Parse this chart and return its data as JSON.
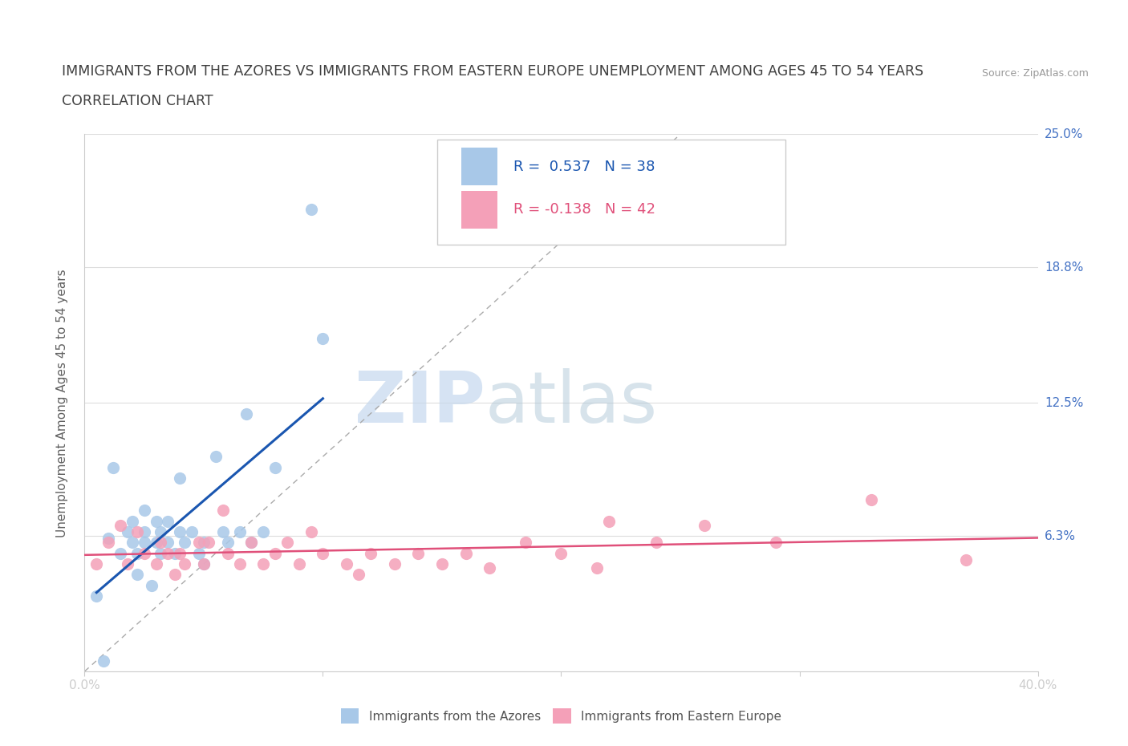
{
  "title_line1": "IMMIGRANTS FROM THE AZORES VS IMMIGRANTS FROM EASTERN EUROPE UNEMPLOYMENT AMONG AGES 45 TO 54 YEARS",
  "title_line2": "CORRELATION CHART",
  "source": "Source: ZipAtlas.com",
  "ylabel": "Unemployment Among Ages 45 to 54 years",
  "xlim": [
    0.0,
    0.4
  ],
  "ylim": [
    0.0,
    0.25
  ],
  "xticks": [
    0.0,
    0.1,
    0.2,
    0.3,
    0.4
  ],
  "xticklabels": [
    "0.0%",
    "",
    "",
    "",
    "40.0%"
  ],
  "ytick_positions": [
    0.0,
    0.063,
    0.125,
    0.188,
    0.25
  ],
  "yticklabels": [
    "",
    "6.3%",
    "12.5%",
    "18.8%",
    "25.0%"
  ],
  "watermark_zip": "ZIP",
  "watermark_atlas": "atlas",
  "azores_color": "#a8c8e8",
  "eastern_color": "#f4a0b8",
  "azores_line_color": "#1a56b0",
  "eastern_line_color": "#e0507a",
  "azores_R": 0.537,
  "azores_N": 38,
  "eastern_R": -0.138,
  "eastern_N": 42,
  "legend_label_azores": "Immigrants from the Azores",
  "legend_label_eastern": "Immigrants from Eastern Europe",
  "azores_x": [
    0.005,
    0.008,
    0.01,
    0.012,
    0.015,
    0.018,
    0.02,
    0.02,
    0.022,
    0.022,
    0.025,
    0.025,
    0.025,
    0.028,
    0.03,
    0.03,
    0.032,
    0.032,
    0.035,
    0.035,
    0.038,
    0.04,
    0.04,
    0.042,
    0.045,
    0.048,
    0.05,
    0.05,
    0.055,
    0.058,
    0.06,
    0.065,
    0.068,
    0.07,
    0.075,
    0.08,
    0.095,
    0.1
  ],
  "azores_y": [
    0.035,
    0.005,
    0.062,
    0.095,
    0.055,
    0.065,
    0.06,
    0.07,
    0.045,
    0.055,
    0.06,
    0.065,
    0.075,
    0.04,
    0.06,
    0.07,
    0.055,
    0.065,
    0.06,
    0.07,
    0.055,
    0.065,
    0.09,
    0.06,
    0.065,
    0.055,
    0.05,
    0.06,
    0.1,
    0.065,
    0.06,
    0.065,
    0.12,
    0.06,
    0.065,
    0.095,
    0.215,
    0.155
  ],
  "eastern_x": [
    0.005,
    0.01,
    0.015,
    0.018,
    0.022,
    0.025,
    0.03,
    0.032,
    0.035,
    0.038,
    0.04,
    0.042,
    0.048,
    0.05,
    0.052,
    0.058,
    0.06,
    0.065,
    0.07,
    0.075,
    0.08,
    0.085,
    0.09,
    0.095,
    0.1,
    0.11,
    0.115,
    0.12,
    0.13,
    0.14,
    0.15,
    0.16,
    0.17,
    0.185,
    0.2,
    0.215,
    0.22,
    0.24,
    0.26,
    0.29,
    0.33,
    0.37
  ],
  "eastern_y": [
    0.05,
    0.06,
    0.068,
    0.05,
    0.065,
    0.055,
    0.05,
    0.06,
    0.055,
    0.045,
    0.055,
    0.05,
    0.06,
    0.05,
    0.06,
    0.075,
    0.055,
    0.05,
    0.06,
    0.05,
    0.055,
    0.06,
    0.05,
    0.065,
    0.055,
    0.05,
    0.045,
    0.055,
    0.05,
    0.055,
    0.05,
    0.055,
    0.048,
    0.06,
    0.055,
    0.048,
    0.07,
    0.06,
    0.068,
    0.06,
    0.08,
    0.052
  ],
  "background_color": "#ffffff",
  "grid_color": "#dddddd",
  "title_color": "#404040",
  "axis_label_color": "#606060",
  "tick_label_color": "#4472c4"
}
